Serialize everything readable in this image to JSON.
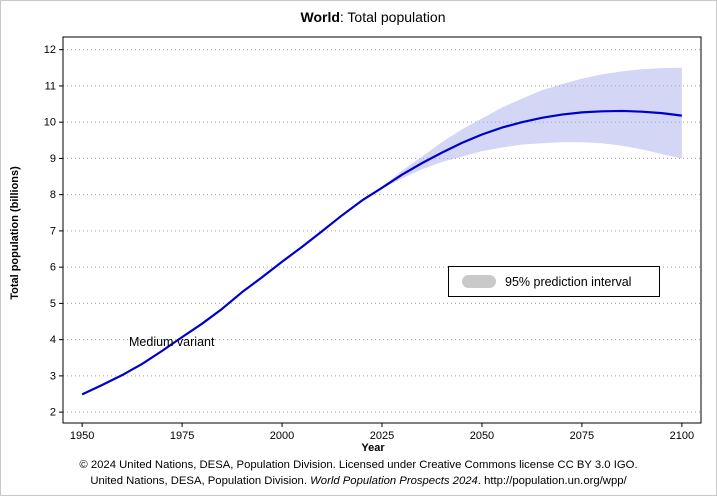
{
  "title": {
    "bold": "World",
    "rest": ": Total population"
  },
  "axes": {
    "y_label": "Total population (billions)",
    "x_label": "Year"
  },
  "annotation": {
    "medium_variant": "Medium variant"
  },
  "legend": {
    "label": "95% prediction interval"
  },
  "footer": {
    "line1": "© 2024 United Nations, DESA, Population Division. Licensed under Creative Commons license CC BY 3.0 IGO.",
    "line2_prefix": "United Nations, DESA, Population Division. ",
    "line2_italic": "World Population Prospects 2024",
    "line2_suffix": ". http://population.un.org/wpp/"
  },
  "colors": {
    "line": "#0000cc",
    "band": "#9fa3e8",
    "band_opacity": 0.45,
    "legend_swatch": "#c9c9c9",
    "grid": "#a0a0a0",
    "axis": "#000000"
  },
  "chart_data": {
    "type": "line",
    "title": "World: Total population",
    "xlabel": "Year",
    "ylabel": "Total population (billions)",
    "xlim": [
      1950,
      2100
    ],
    "ylim": [
      2,
      12
    ],
    "x_ticks": [
      1950,
      1975,
      2000,
      2025,
      2050,
      2075,
      2100
    ],
    "y_ticks": [
      2,
      3,
      4,
      5,
      6,
      7,
      8,
      9,
      10,
      11,
      12
    ],
    "grid": "horizontal-dotted",
    "legend_position": "inside-right",
    "series": [
      {
        "name": "Medium variant",
        "x": [
          1950,
          1955,
          1960,
          1965,
          1970,
          1975,
          1980,
          1985,
          1990,
          1995,
          2000,
          2005,
          2010,
          2015,
          2020,
          2025,
          2030,
          2035,
          2040,
          2045,
          2050,
          2055,
          2060,
          2065,
          2070,
          2075,
          2080,
          2085,
          2090,
          2095,
          2100
        ],
        "values": [
          2.49,
          2.75,
          3.02,
          3.33,
          3.69,
          4.07,
          4.44,
          4.85,
          5.31,
          5.72,
          6.15,
          6.56,
          6.99,
          7.43,
          7.84,
          8.19,
          8.55,
          8.87,
          9.16,
          9.43,
          9.66,
          9.85,
          10.0,
          10.12,
          10.21,
          10.27,
          10.3,
          10.31,
          10.29,
          10.25,
          10.18
        ]
      },
      {
        "name": "95% prediction interval lower",
        "x": [
          2025,
          2030,
          2035,
          2040,
          2045,
          2050,
          2055,
          2060,
          2065,
          2070,
          2075,
          2080,
          2085,
          2090,
          2095,
          2100
        ],
        "values": [
          8.17,
          8.45,
          8.7,
          8.9,
          9.05,
          9.2,
          9.3,
          9.38,
          9.42,
          9.45,
          9.45,
          9.42,
          9.35,
          9.25,
          9.12,
          9.0
        ]
      },
      {
        "name": "95% prediction interval upper",
        "x": [
          2025,
          2030,
          2035,
          2040,
          2045,
          2050,
          2055,
          2060,
          2065,
          2070,
          2075,
          2080,
          2085,
          2090,
          2095,
          2100
        ],
        "values": [
          8.22,
          8.66,
          9.05,
          9.45,
          9.8,
          10.1,
          10.4,
          10.65,
          10.88,
          11.05,
          11.2,
          11.32,
          11.4,
          11.46,
          11.49,
          11.5
        ]
      }
    ]
  }
}
